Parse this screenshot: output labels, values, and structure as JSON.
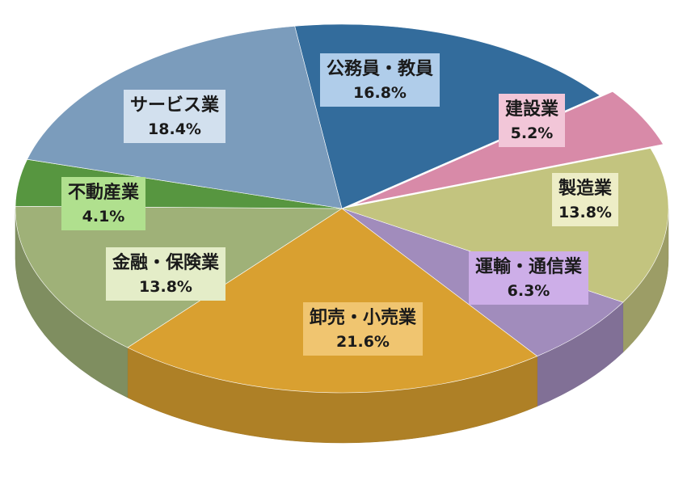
{
  "chart_data": {
    "type": "pie",
    "style": "3d-exploded",
    "title": "",
    "legend": "none",
    "slices": [
      {
        "label": "公務員・教員",
        "value": 16.8,
        "value_text": "16.8%",
        "color": "#336c9c",
        "label_bg": "#b0cdea"
      },
      {
        "label": "建設業",
        "value": 5.2,
        "value_text": "5.2%",
        "color": "#d88aa8",
        "label_bg": "#f2c6d8"
      },
      {
        "label": "製造業",
        "value": 13.8,
        "value_text": "13.8%",
        "color": "#c3c47f",
        "label_bg": "#ededc6"
      },
      {
        "label": "運輸・通信業",
        "value": 6.3,
        "value_text": "6.3%",
        "color": "#a18cbc",
        "label_bg": "#cdaee8"
      },
      {
        "label": "卸売・小売業",
        "value": 21.6,
        "value_text": "21.6%",
        "color": "#d9a030",
        "label_bg": "#f0c570"
      },
      {
        "label": "金融・保険業",
        "value": 13.8,
        "value_text": "13.8%",
        "color": "#9fb178",
        "label_bg": "#e4edc8"
      },
      {
        "label": "不動産業",
        "value": 4.1,
        "value_text": "4.1%",
        "color": "#579640",
        "label_bg": "#b0e08e"
      },
      {
        "label": "サービス業",
        "value": 18.4,
        "value_text": "18.4%",
        "color": "#7b9cbc",
        "label_bg": "#d2e0ee"
      }
    ]
  }
}
